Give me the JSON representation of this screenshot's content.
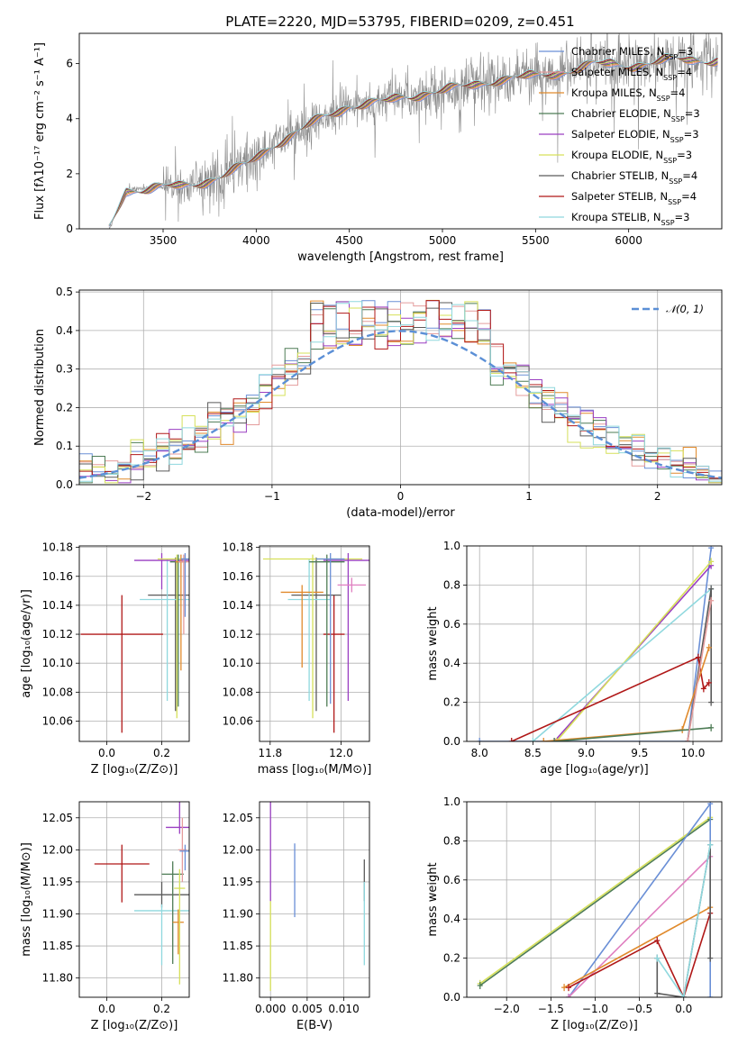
{
  "figure": {
    "title": "PLATE=2220, MJD=53795, FIBERID=0209, z=0.451"
  },
  "colors": {
    "chabrier_miles": "#6a8fd6",
    "salpeter_miles": "#e49c9c",
    "kroupa_miles": "#e08a2c",
    "chabrier_elodie": "#4e7c56",
    "salpeter_elodie": "#9a3fc2",
    "kroupa_elodie": "#d6e05a",
    "chabrier_stelib": "#5a5a5a",
    "salpeter_stelib": "#b01818",
    "kroupa_stelib": "#8fd8de",
    "normal": "#5b8fd6",
    "pink": "#e07fc0",
    "data": "#8c8c8c"
  },
  "chart_data": [
    {
      "id": "spectrum",
      "type": "line",
      "xlabel": "wavelength [Angstrom, rest frame]",
      "ylabel": "Flux [fλ10⁻¹⁷ erg cm⁻² s⁻¹ A⁻¹]",
      "xlim": [
        3050,
        6500
      ],
      "ylim": [
        0,
        7.1
      ],
      "xticks": [
        3500,
        4000,
        4500,
        5000,
        5500,
        6000
      ],
      "yticks": [
        0,
        2,
        4,
        6
      ],
      "continuum": {
        "x": [
          3210,
          3300,
          3450,
          3600,
          3800,
          3950,
          4100,
          4300,
          4500,
          4700,
          4900,
          5100,
          5300,
          5500,
          5800,
          6000,
          6200,
          6400
        ],
        "y": [
          0,
          1.4,
          1.5,
          1.5,
          1.9,
          2.3,
          3.1,
          3.8,
          4.5,
          4.6,
          4.95,
          5.1,
          5.45,
          5.5,
          5.95,
          5.95,
          6.1,
          6.15
        ]
      },
      "legend": [
        {
          "label": "Chabrier MILES, N",
          "sub": "SSP",
          "suffix": "=3",
          "color_key": "chabrier_miles"
        },
        {
          "label": "Salpeter MILES, N",
          "sub": "SSP",
          "suffix": "=4",
          "color_key": "salpeter_miles"
        },
        {
          "label": "Kroupa MILES, N",
          "sub": "SSP",
          "suffix": "=4",
          "color_key": "kroupa_miles"
        },
        {
          "label": "Chabrier ELODIE, N",
          "sub": "SSP",
          "suffix": "=3",
          "color_key": "chabrier_elodie"
        },
        {
          "label": "Salpeter ELODIE, N",
          "sub": "SSP",
          "suffix": "=3",
          "color_key": "salpeter_elodie"
        },
        {
          "label": "Kroupa ELODIE, N",
          "sub": "SSP",
          "suffix": "=3",
          "color_key": "kroupa_elodie"
        },
        {
          "label": "Chabrier STELIB, N",
          "sub": "SSP",
          "suffix": "=4",
          "color_key": "chabrier_stelib"
        },
        {
          "label": "Salpeter STELIB, N",
          "sub": "SSP",
          "suffix": "=4",
          "color_key": "salpeter_stelib"
        },
        {
          "label": "Kroupa STELIB, N",
          "sub": "SSP",
          "suffix": "=3",
          "color_key": "kroupa_stelib"
        }
      ]
    },
    {
      "id": "residuals",
      "type": "histogram",
      "xlabel": "(data-model)/error",
      "ylabel": "Normed distribution",
      "xlim": [
        -2.5,
        2.5
      ],
      "ylim": [
        0,
        0.505
      ],
      "xticks": [
        -2,
        -1,
        0,
        1,
        2
      ],
      "yticks": [
        0.0,
        0.1,
        0.2,
        0.3,
        0.4,
        0.5
      ],
      "bin_width": 0.1,
      "legend_label": "𝒩(0, 1)",
      "reference": "normal(0,1)"
    },
    {
      "id": "age_vs_Z",
      "type": "errorbar",
      "xlabel": "Z [log₁₀(Z/Z⊙)]",
      "ylabel": "age  [log₁₀(age/yr)]",
      "xlim": [
        -0.1,
        0.3
      ],
      "ylim": [
        10.046,
        10.181
      ],
      "xticks": [
        0.0,
        0.2
      ],
      "yticks": [
        10.06,
        10.08,
        10.1,
        10.12,
        10.14,
        10.16,
        10.18
      ],
      "points": [
        {
          "c": "salpeter_stelib",
          "x": 0.055,
          "xe": 0.15,
          "y": 10.12,
          "ye_lo": 0.068,
          "ye_hi": 0.027
        },
        {
          "c": "chabrier_stelib",
          "x": 0.25,
          "xe": 0.1,
          "y": 10.147,
          "ye_lo": 0.08,
          "ye_hi": 0.026
        },
        {
          "c": "kroupa_stelib",
          "x": 0.22,
          "xe": 0.1,
          "y": 10.144,
          "ye_lo": 0.07,
          "ye_hi": 0.028
        },
        {
          "c": "salpeter_elodie",
          "x": 0.2,
          "xe": 0.1,
          "y": 10.171,
          "ye_lo": 0.02,
          "ye_hi": 0.005
        },
        {
          "c": "kroupa_elodie",
          "x": 0.255,
          "xe": 0.07,
          "y": 10.172,
          "ye_lo": 0.11,
          "ye_hi": 0.003
        },
        {
          "c": "chabrier_elodie",
          "x": 0.26,
          "xe": 0.03,
          "y": 10.17,
          "ye_lo": 0.1,
          "ye_hi": 0.005
        },
        {
          "c": "kroupa_miles",
          "x": 0.27,
          "xe": 0.02,
          "y": 10.17,
          "ye_lo": 0.075,
          "ye_hi": 0.005
        },
        {
          "c": "salpeter_miles",
          "x": 0.28,
          "xe": 0.02,
          "y": 10.17,
          "ye_lo": 0.05,
          "ye_hi": 0.005
        },
        {
          "c": "chabrier_miles",
          "x": 0.285,
          "xe": 0.015,
          "y": 10.172,
          "ye_lo": 0.04,
          "ye_hi": 0.004
        }
      ]
    },
    {
      "id": "age_vs_mass",
      "type": "errorbar",
      "xlabel": "mass [log₁₀(M/M⊙)]",
      "ylabel": "",
      "xlim": [
        11.77,
        12.08
      ],
      "ylim": [
        10.046,
        10.181
      ],
      "xticks": [
        11.8,
        12.0
      ],
      "yticks": [
        10.06,
        10.08,
        10.1,
        10.12,
        10.14,
        10.16,
        10.18
      ],
      "points": [
        {
          "c": "salpeter_stelib",
          "x": 11.98,
          "xe": 0.03,
          "y": 10.12,
          "ye_lo": 0.068,
          "ye_hi": 0.027
        },
        {
          "c": "chabrier_stelib",
          "x": 11.93,
          "xe": 0.07,
          "y": 10.147,
          "ye_lo": 0.08,
          "ye_hi": 0.026
        },
        {
          "c": "kroupa_stelib",
          "x": 11.91,
          "xe": 0.06,
          "y": 10.144,
          "ye_lo": 0.07,
          "ye_hi": 0.028
        },
        {
          "c": "kroupa_miles",
          "x": 11.89,
          "xe": 0.06,
          "y": 10.149,
          "ye_lo": 0.052,
          "ye_hi": 0.005
        },
        {
          "c": "kroupa_elodie",
          "x": 11.92,
          "xe": 0.14,
          "y": 10.172,
          "ye_lo": 0.11,
          "ye_hi": 0.003
        },
        {
          "c": "salpeter_elodie",
          "x": 12.02,
          "xe": 0.07,
          "y": 10.171,
          "ye_lo": 0.097,
          "ye_hi": 0.005
        },
        {
          "c": "chabrier_elodie",
          "x": 11.96,
          "xe": 0.05,
          "y": 10.17,
          "ye_lo": 0.1,
          "ye_hi": 0.005
        },
        {
          "c": "chabrier_miles",
          "x": 11.97,
          "xe": 0.04,
          "y": 10.172,
          "ye_lo": 0.1,
          "ye_hi": 0.004
        },
        {
          "c": "pink",
          "x": 12.03,
          "xe": 0.04,
          "y": 10.154,
          "ye_lo": 0.005,
          "ye_hi": 0.005
        }
      ]
    },
    {
      "id": "weight_vs_age",
      "type": "line",
      "xlabel": "age  [log₁₀(age/yr)]",
      "ylabel": "mass weight",
      "xlim": [
        7.88,
        10.27
      ],
      "ylim": [
        0,
        1
      ],
      "xticks": [
        8.0,
        8.5,
        9.0,
        9.5,
        10.0
      ],
      "yticks": [
        0.0,
        0.2,
        0.4,
        0.6,
        0.8,
        1.0
      ],
      "series": [
        {
          "c": "chabrier_miles",
          "x": [
            8.0,
            9.95,
            10.17
          ],
          "y": [
            0.0,
            0.0,
            0.99
          ]
        },
        {
          "c": "salpeter_elodie",
          "x": [
            8.7,
            10.17
          ],
          "y": [
            0.0,
            0.9
          ]
        },
        {
          "c": "kroupa_elodie",
          "x": [
            8.72,
            10.17
          ],
          "y": [
            0.0,
            0.92
          ]
        },
        {
          "c": "kroupa_stelib",
          "x": [
            8.5,
            10.17
          ],
          "y": [
            0.0,
            0.78
          ]
        },
        {
          "c": "chabrier_stelib",
          "x": [
            9.95,
            10.17,
            10.17
          ],
          "y": [
            0.0,
            0.78,
            0.2
          ]
        },
        {
          "c": "salpeter_stelib",
          "x": [
            8.3,
            10.05,
            10.1,
            10.15
          ],
          "y": [
            0.0,
            0.43,
            0.27,
            0.3
          ]
        },
        {
          "c": "kroupa_miles",
          "x": [
            8.6,
            9.9,
            10.15
          ],
          "y": [
            0.0,
            0.06,
            0.48
          ]
        },
        {
          "c": "chabrier_elodie",
          "x": [
            8.7,
            10.17
          ],
          "y": [
            0.0,
            0.07
          ]
        },
        {
          "c": "salpeter_miles",
          "x": [
            9.95,
            10.17
          ],
          "y": [
            0.0,
            0.72
          ]
        }
      ]
    },
    {
      "id": "mass_vs_Z",
      "type": "errorbar",
      "xlabel": "Z [log₁₀(Z/Z⊙)]",
      "ylabel": "mass [log₁₀(M/M⊙)]",
      "xlim": [
        -0.1,
        0.3
      ],
      "ylim": [
        11.77,
        12.075
      ],
      "xticks": [
        0.0,
        0.2
      ],
      "yticks": [
        11.8,
        11.85,
        11.9,
        11.95,
        12.0,
        12.05
      ],
      "points": [
        {
          "c": "salpeter_stelib",
          "x": 0.055,
          "xe": 0.1,
          "y": 11.978,
          "ye_lo": 0.06,
          "ye_hi": 0.03
        },
        {
          "c": "chabrier_stelib",
          "x": 0.2,
          "xe": 0.1,
          "y": 11.93,
          "ye_lo": 0.02,
          "ye_hi": 0.02
        },
        {
          "c": "kroupa_stelib",
          "x": 0.2,
          "xe": 0.1,
          "y": 11.905,
          "ye_lo": 0.085,
          "ye_hi": 0.01
        },
        {
          "c": "chabrier_elodie",
          "x": 0.24,
          "xe": 0.04,
          "y": 11.962,
          "ye_lo": 0.14,
          "ye_hi": 0.02
        },
        {
          "c": "salpeter_elodie",
          "x": 0.265,
          "xe": 0.05,
          "y": 12.035,
          "ye_lo": 0.01,
          "ye_hi": 0.04
        },
        {
          "c": "kroupa_miles",
          "x": 0.26,
          "xe": 0.02,
          "y": 11.887,
          "ye_lo": 0.05,
          "ye_hi": 0.02
        },
        {
          "c": "kroupa_elodie",
          "x": 0.265,
          "xe": 0.02,
          "y": 11.94,
          "ye_lo": 0.15,
          "ye_hi": 0.03
        },
        {
          "c": "salpeter_miles",
          "x": 0.275,
          "xe": 0.015,
          "y": 12.0,
          "ye_lo": 0.05,
          "ye_hi": 0.05
        },
        {
          "c": "chabrier_miles",
          "x": 0.285,
          "xe": 0.02,
          "y": 11.998,
          "ye_lo": 0.03,
          "ye_hi": 0.01
        }
      ]
    },
    {
      "id": "mass_vs_EBV",
      "type": "errorbar",
      "xlabel": "E(B-V)",
      "ylabel": "",
      "xlim": [
        -0.0015,
        0.0135
      ],
      "ylim": [
        11.77,
        12.075
      ],
      "xticks": [
        0.0,
        0.005,
        0.01
      ],
      "xtick_labels": [
        "0.000",
        "0.005",
        "0.010"
      ],
      "yticks": [
        11.8,
        11.85,
        11.9,
        11.95,
        12.0,
        12.05
      ],
      "points": [
        {
          "c": "salpeter_elodie",
          "x": 0.0,
          "xe": 0,
          "y": 11.99,
          "ye_lo": 0.07,
          "ye_hi": 0.085
        },
        {
          "c": "kroupa_elodie",
          "x": 0.0,
          "xe": 0,
          "y": 11.85,
          "ye_lo": 0.07,
          "ye_hi": 0.07
        },
        {
          "c": "chabrier_miles",
          "x": 0.0033,
          "xe": 0,
          "y": 11.95,
          "ye_lo": 0.055,
          "ye_hi": 0.06
        },
        {
          "c": "chabrier_stelib",
          "x": 0.0128,
          "xe": 0,
          "y": 11.96,
          "ye_lo": 0.04,
          "ye_hi": 0.025
        },
        {
          "c": "kroupa_stelib",
          "x": 0.0128,
          "xe": 0,
          "y": 11.88,
          "ye_lo": 0.06,
          "ye_hi": 0.07
        }
      ]
    },
    {
      "id": "weight_vs_Z",
      "type": "line",
      "xlabel": "Z [log₁₀(Z/Z⊙)]",
      "ylabel": "mass weight",
      "xlim": [
        -2.45,
        0.43
      ],
      "ylim": [
        0,
        1
      ],
      "xticks": [
        -2.0,
        -1.5,
        -1.0,
        -0.5,
        0.0
      ],
      "yticks": [
        0.0,
        0.2,
        0.4,
        0.6,
        0.8,
        1.0
      ],
      "series": [
        {
          "c": "kroupa_elodie",
          "x": [
            -2.3,
            0.3
          ],
          "y": [
            0.07,
            0.92
          ]
        },
        {
          "c": "chabrier_elodie",
          "x": [
            -2.3,
            0.3
          ],
          "y": [
            0.06,
            0.91
          ]
        },
        {
          "c": "chabrier_miles",
          "x": [
            -1.3,
            0.3,
            0.3
          ],
          "y": [
            0.0,
            0.99,
            0.0
          ]
        },
        {
          "c": "pink",
          "x": [
            -1.3,
            0.3
          ],
          "y": [
            0.0,
            0.72
          ]
        },
        {
          "c": "kroupa_miles",
          "x": [
            -1.35,
            0.3
          ],
          "y": [
            0.05,
            0.46
          ]
        },
        {
          "c": "salpeter_stelib",
          "x": [
            -1.3,
            -0.3,
            0.0,
            0.3
          ],
          "y": [
            0.05,
            0.29,
            0.0,
            0.43
          ]
        },
        {
          "c": "chabrier_stelib",
          "x": [
            -0.3,
            -0.3,
            0.0,
            0.3,
            0.3
          ],
          "y": [
            0.2,
            0.02,
            0.0,
            0.78,
            0.2
          ]
        },
        {
          "c": "kroupa_stelib",
          "x": [
            -0.3,
            0.0,
            0.3
          ],
          "y": [
            0.2,
            0.0,
            0.78
          ]
        }
      ]
    }
  ]
}
